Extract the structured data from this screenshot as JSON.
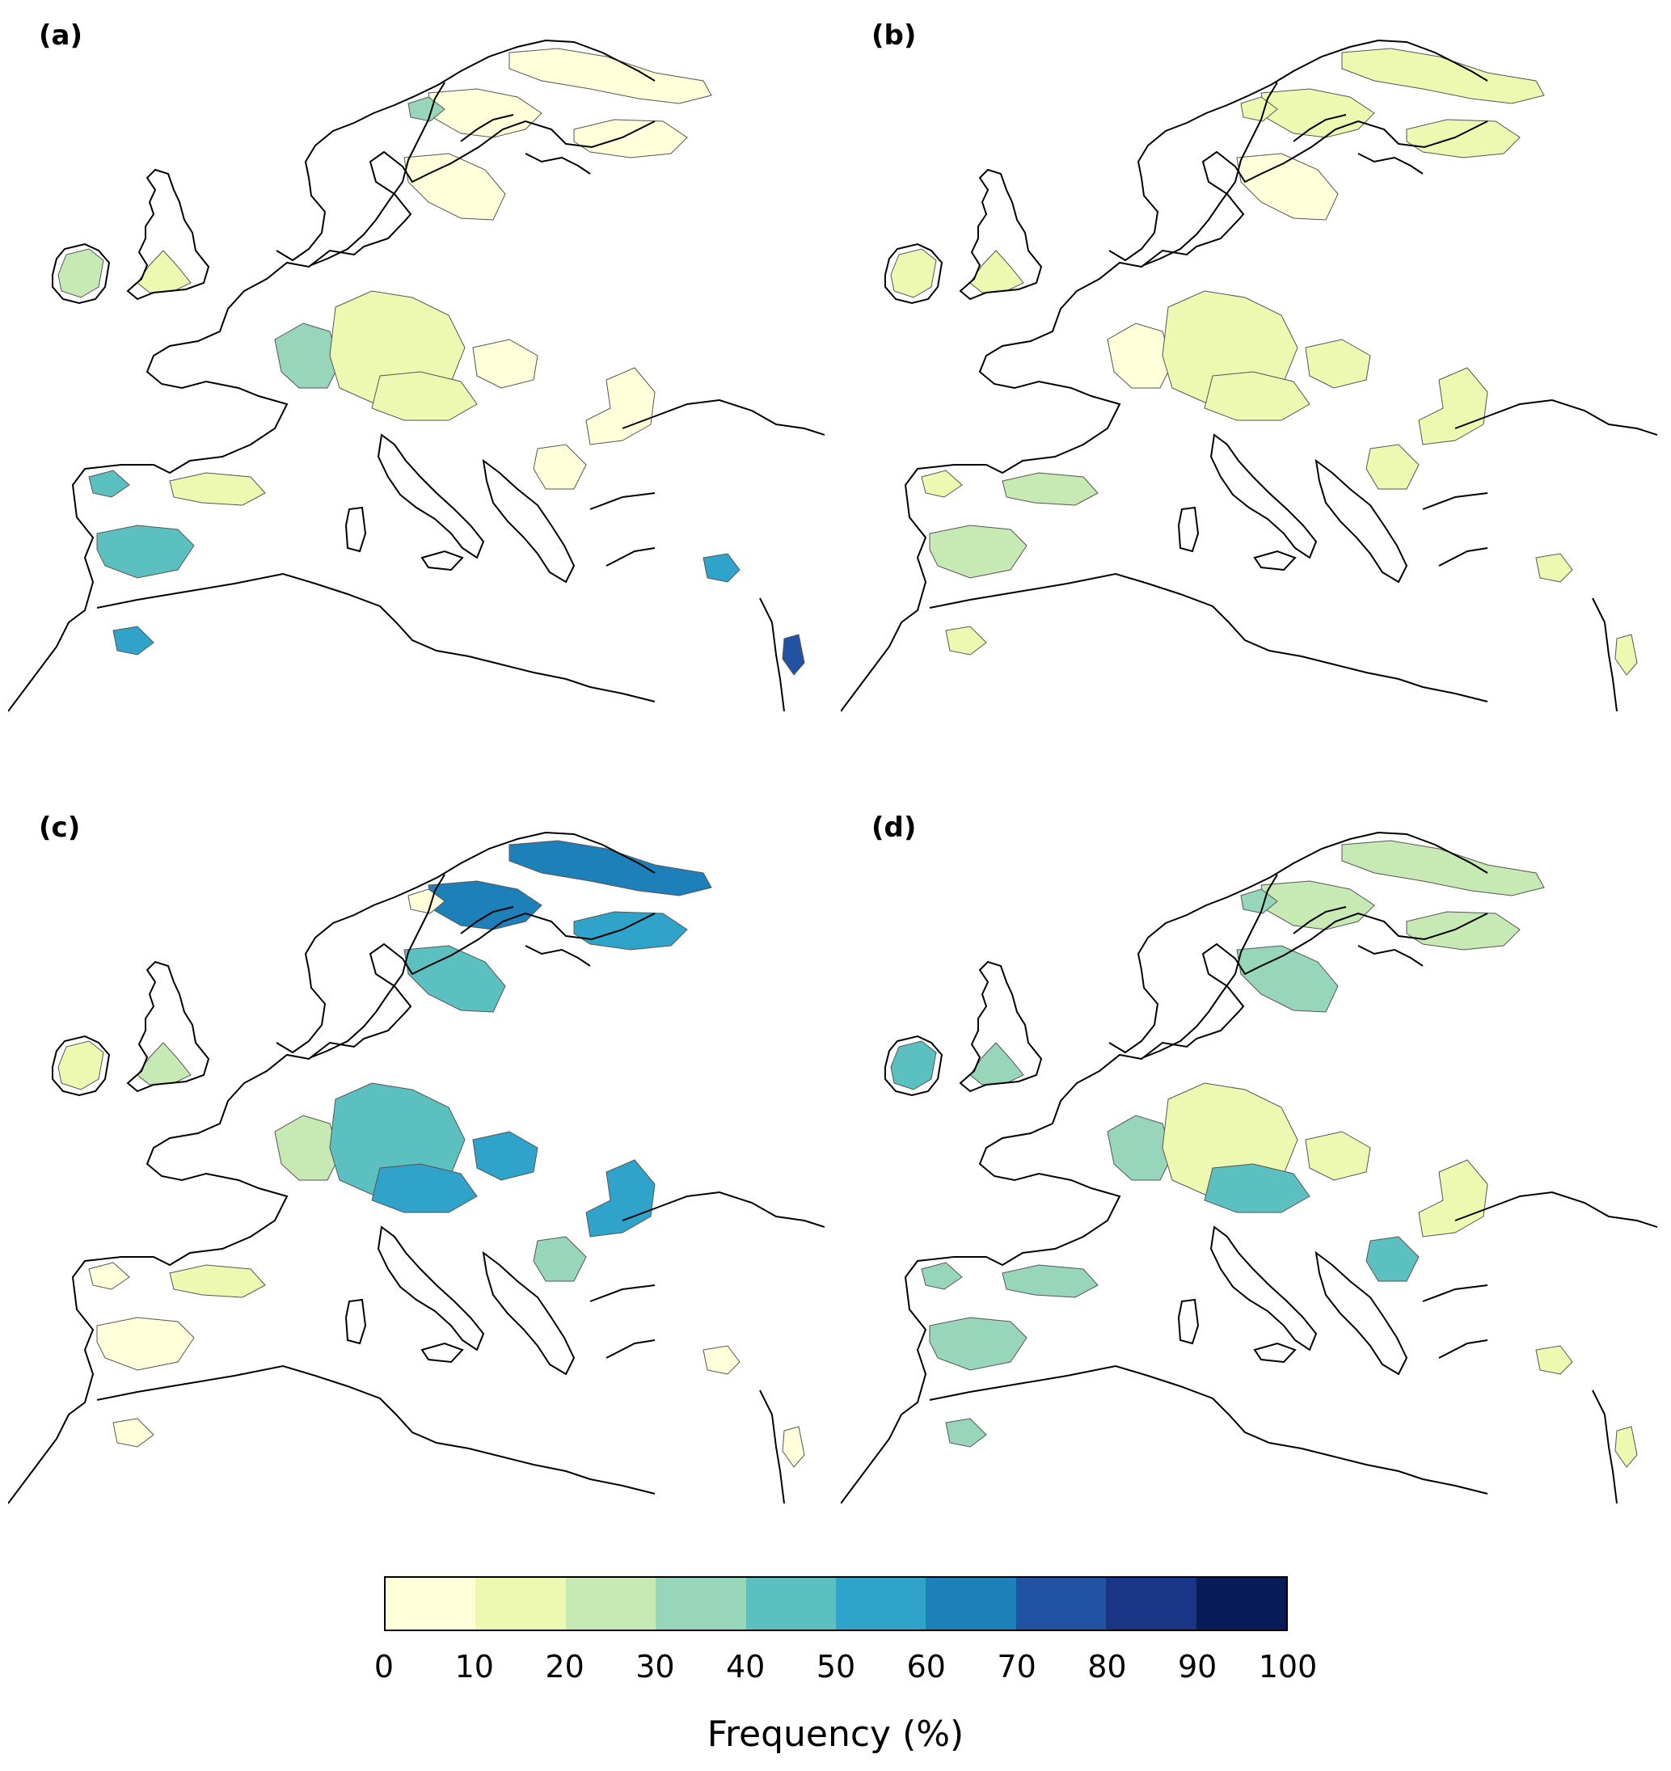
{
  "panels": [
    {
      "label": "(a)",
      "regions": [
        {
          "name": "scandinavia-north",
          "value": 5
        },
        {
          "name": "scandinavia-central",
          "value": 8
        },
        {
          "name": "scandinavia-south",
          "value": 5
        },
        {
          "name": "finland-russia",
          "value": 8
        },
        {
          "name": "norway-west-coast",
          "value": 35
        },
        {
          "name": "ireland",
          "value": 25
        },
        {
          "name": "great-britain",
          "value": 18
        },
        {
          "name": "france",
          "value": 38
        },
        {
          "name": "germany-central",
          "value": 15
        },
        {
          "name": "poland",
          "value": 8
        },
        {
          "name": "danube",
          "value": 12
        },
        {
          "name": "balkans",
          "value": 5
        },
        {
          "name": "ukraine",
          "value": 5
        },
        {
          "name": "iberia-north",
          "value": 15
        },
        {
          "name": "iberia-west",
          "value": 45
        },
        {
          "name": "iberia-south",
          "value": 48
        },
        {
          "name": "morocco",
          "value": 55
        },
        {
          "name": "turkey",
          "value": 55
        },
        {
          "name": "levant",
          "value": 75
        }
      ]
    },
    {
      "label": "(b)",
      "regions": [
        {
          "name": "scandinavia-north",
          "value": 12
        },
        {
          "name": "scandinavia-central",
          "value": 12
        },
        {
          "name": "scandinavia-south",
          "value": 5
        },
        {
          "name": "finland-russia",
          "value": 12
        },
        {
          "name": "norway-west-coast",
          "value": 12
        },
        {
          "name": "ireland",
          "value": 18
        },
        {
          "name": "great-britain",
          "value": 12
        },
        {
          "name": "france",
          "value": 8
        },
        {
          "name": "germany-central",
          "value": 15
        },
        {
          "name": "poland",
          "value": 15
        },
        {
          "name": "danube",
          "value": 15
        },
        {
          "name": "balkans",
          "value": 15
        },
        {
          "name": "ukraine",
          "value": 15
        },
        {
          "name": "iberia-north",
          "value": 22
        },
        {
          "name": "iberia-west",
          "value": 15
        },
        {
          "name": "iberia-south",
          "value": 22
        },
        {
          "name": "morocco",
          "value": 18
        },
        {
          "name": "turkey",
          "value": 15
        },
        {
          "name": "levant",
          "value": 12
        }
      ]
    },
    {
      "label": "(c)",
      "regions": [
        {
          "name": "scandinavia-north",
          "value": 62
        },
        {
          "name": "scandinavia-central",
          "value": 65
        },
        {
          "name": "scandinavia-south",
          "value": 45
        },
        {
          "name": "finland-russia",
          "value": 55
        },
        {
          "name": "norway-west-coast",
          "value": 8
        },
        {
          "name": "ireland",
          "value": 18
        },
        {
          "name": "great-britain",
          "value": 25
        },
        {
          "name": "france",
          "value": 28
        },
        {
          "name": "germany-central",
          "value": 42
        },
        {
          "name": "poland",
          "value": 55
        },
        {
          "name": "danube",
          "value": 55
        },
        {
          "name": "balkans",
          "value": 35
        },
        {
          "name": "ukraine",
          "value": 58
        },
        {
          "name": "iberia-north",
          "value": 15
        },
        {
          "name": "iberia-west",
          "value": 8
        },
        {
          "name": "iberia-south",
          "value": 5
        },
        {
          "name": "morocco",
          "value": 5
        },
        {
          "name": "turkey",
          "value": 8
        },
        {
          "name": "levant",
          "value": 5
        }
      ]
    },
    {
      "label": "(d)",
      "regions": [
        {
          "name": "scandinavia-north",
          "value": 25
        },
        {
          "name": "scandinavia-central",
          "value": 28
        },
        {
          "name": "scandinavia-south",
          "value": 35
        },
        {
          "name": "finland-russia",
          "value": 28
        },
        {
          "name": "norway-west-coast",
          "value": 35
        },
        {
          "name": "ireland",
          "value": 45
        },
        {
          "name": "great-britain",
          "value": 38
        },
        {
          "name": "france",
          "value": 35
        },
        {
          "name": "germany-central",
          "value": 15
        },
        {
          "name": "poland",
          "value": 15
        },
        {
          "name": "danube",
          "value": 42
        },
        {
          "name": "balkans",
          "value": 48
        },
        {
          "name": "ukraine",
          "value": 15
        },
        {
          "name": "iberia-north",
          "value": 35
        },
        {
          "name": "iberia-west",
          "value": 38
        },
        {
          "name": "iberia-south",
          "value": 35
        },
        {
          "name": "morocco",
          "value": 35
        },
        {
          "name": "turkey",
          "value": 12
        },
        {
          "name": "levant",
          "value": 12
        }
      ]
    }
  ],
  "colorbar": {
    "label": "Frequency (%)",
    "ticks": [
      "0",
      "10",
      "20",
      "30",
      "40",
      "50",
      "60",
      "70",
      "80",
      "90",
      "100"
    ],
    "range": [
      0,
      100
    ],
    "colors": [
      "#ffffd9",
      "#edf8b1",
      "#c7e9b4",
      "#98d6bb",
      "#5cc0c0",
      "#2fa3c9",
      "#1d80b8",
      "#2253a3",
      "#1b3586",
      "#081d58"
    ]
  }
}
